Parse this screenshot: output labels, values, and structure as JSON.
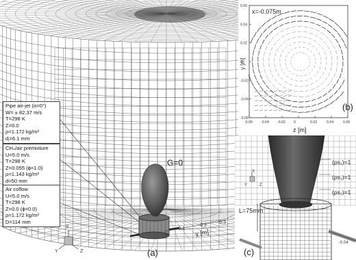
{
  "panel_a": {
    "label": "(a)",
    "g_label": "G=0",
    "y_axis_label": "y [m]",
    "y_ticks": [
      "-0.1",
      "-0.2",
      "-0.3",
      "0"
    ],
    "triad": {
      "x": "X",
      "y": "Y",
      "z": "Z"
    },
    "boxes": [
      {
        "lines": [
          "Pipe air-jet (α=0°)",
          "W= ± 82.37 m/s",
          "T=298 K",
          "Z=0.0",
          "ρ=1.172 kg/m³",
          "dⱼ=6.1 mm"
        ]
      },
      {
        "lines": [
          "CH₄/air premixture",
          "U=5.0 m/s",
          "T=298 K",
          "Z=0.055 (ϕ=1.0)",
          "ρ=1.143 kg/m³",
          "d=50 mm"
        ]
      },
      {
        "lines": [
          "Air coflow",
          "U=5.0 m/s",
          "T=298 K",
          "Z=0.0 (ϕ=0.0)",
          "ρ=1.172 kg/m³",
          "D=114 mm"
        ]
      }
    ]
  },
  "panel_b": {
    "label": "(b)",
    "title": "x=-0.075m",
    "xlabel": "z [m]",
    "ylabel": "y [m]",
    "x_ticks": [
      "-0.06",
      "-0.04",
      "-0.02",
      "0",
      "0.02",
      "0.04",
      "0.06"
    ],
    "y_ticks": [
      "0.06",
      "0.04",
      "0.02",
      "0",
      "-0.02",
      "-0.04",
      "-0.06"
    ]
  },
  "panel_c": {
    "label": "(c)",
    "dimension_label": "L=75mm",
    "rho_labels": [
      "(ρs₁)=1",
      "(ρs₁)=1",
      "(ρs₁)=1"
    ],
    "pipe_tick": "-0.04",
    "triad": {
      "x": "X",
      "y": "Y",
      "z": "Z"
    }
  },
  "colors": {
    "mesh": "#555555",
    "flame": "#5a5a5a",
    "burner": "#3a3a3a"
  }
}
